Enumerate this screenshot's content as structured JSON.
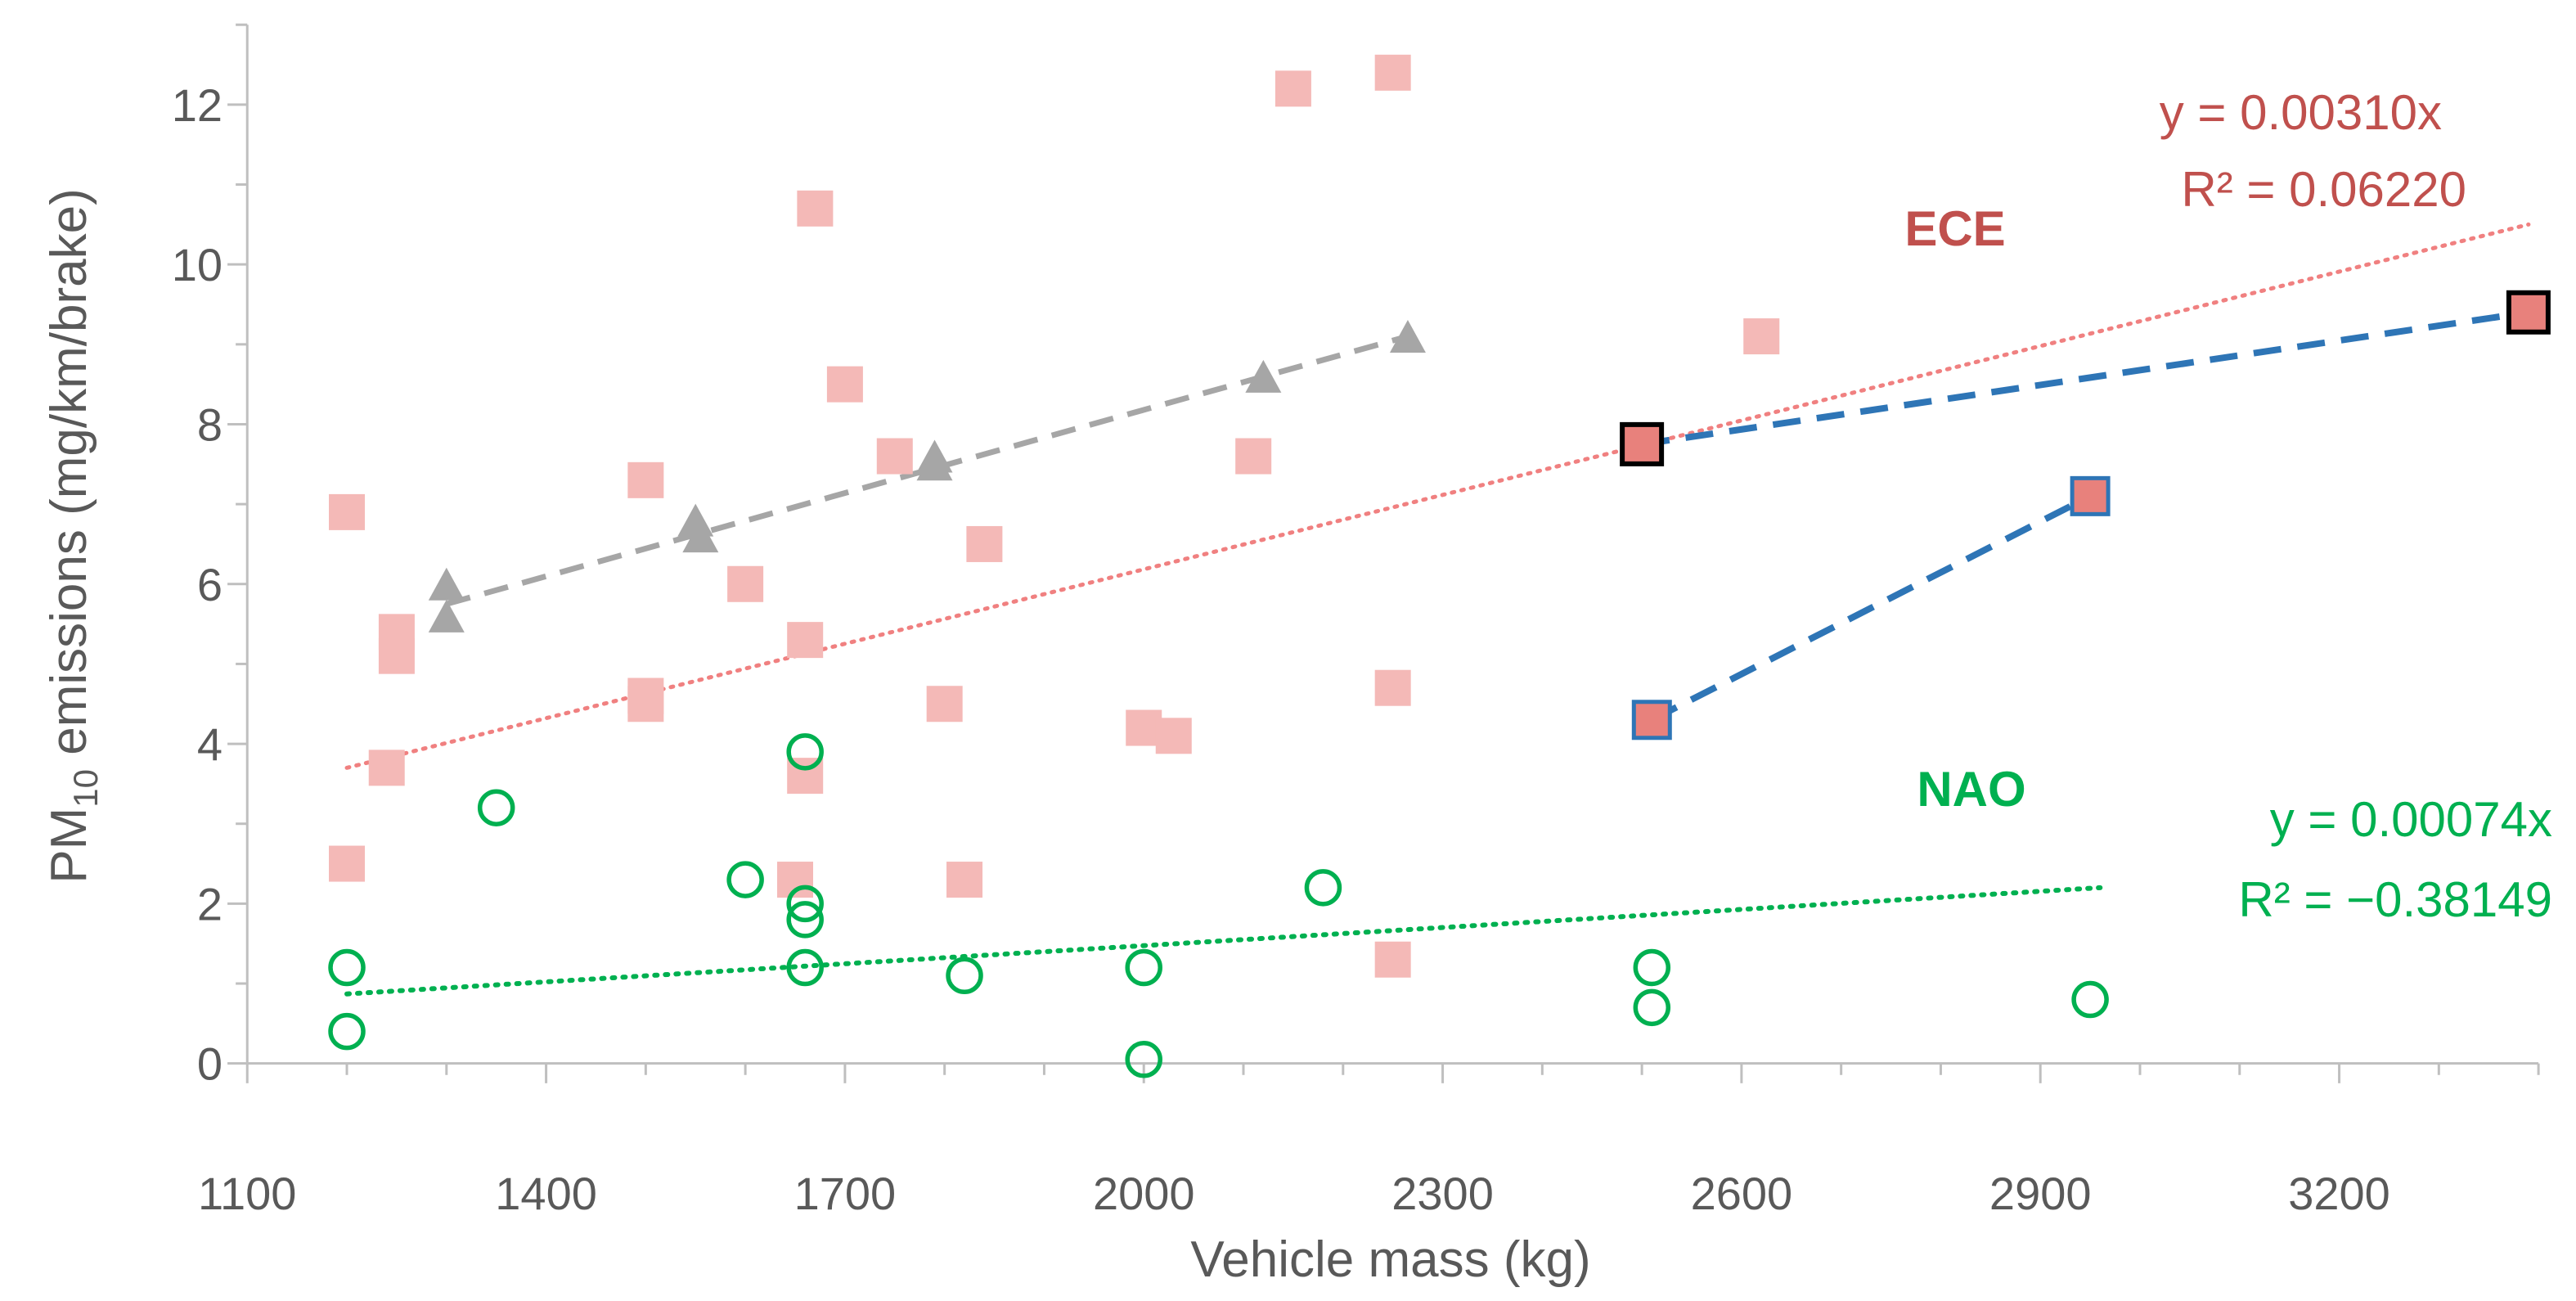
{
  "chart_data": {
    "type": "scatter",
    "title": "",
    "xlabel": "Vehicle mass (kg)",
    "ylabel_main": "PM",
    "ylabel_sub": "10",
    "ylabel_rest": " emissions (mg/km/brake)",
    "xlim": [
      1100,
      3400
    ],
    "ylim": [
      0,
      13
    ],
    "x_ticks": [
      1100,
      1400,
      1700,
      2000,
      2300,
      2600,
      2900,
      3200
    ],
    "x_tick_labels": [
      "1100",
      "1400",
      "1700",
      "2000",
      "2300",
      "2600",
      "2900",
      "3200"
    ],
    "x_minor_step": 100,
    "y_ticks": [
      0,
      2,
      4,
      6,
      8,
      10,
      12
    ],
    "y_tick_labels": [
      "0",
      "2",
      "4",
      "6",
      "8",
      "10",
      "12"
    ],
    "y_minor_step": 1,
    "colors": {
      "ece": "#f4b9b7",
      "ece_text": "#c0504d",
      "ece_trend": "#f08080",
      "nao": "#00b050",
      "gray": "#a6a6a6",
      "blue": "#2e75b6",
      "highlight_fill": "#e8817c",
      "axis": "#bfbfbf"
    },
    "series": [
      {
        "name": "ECE",
        "marker": "square",
        "points": [
          [
            1200,
            6.9
          ],
          [
            1200,
            2.5
          ],
          [
            1240,
            3.7
          ],
          [
            1250,
            5.4
          ],
          [
            1250,
            5.1
          ],
          [
            1500,
            7.3
          ],
          [
            1500,
            4.6
          ],
          [
            1500,
            4.5
          ],
          [
            1600,
            6.0
          ],
          [
            1650,
            2.3
          ],
          [
            1660,
            5.3
          ],
          [
            1660,
            3.6
          ],
          [
            1670,
            10.7
          ],
          [
            1700,
            8.5
          ],
          [
            1750,
            7.6
          ],
          [
            1800,
            4.5
          ],
          [
            1820,
            2.3
          ],
          [
            1840,
            6.5
          ],
          [
            2000,
            4.2
          ],
          [
            2030,
            4.1
          ],
          [
            2110,
            7.6
          ],
          [
            2150,
            12.2
          ],
          [
            2250,
            12.4
          ],
          [
            2250,
            4.7
          ],
          [
            2250,
            1.3
          ],
          [
            2620,
            9.1
          ]
        ]
      },
      {
        "name": "NAO",
        "marker": "circle",
        "points": [
          [
            1200,
            1.2
          ],
          [
            1200,
            0.4
          ],
          [
            1350,
            3.2
          ],
          [
            1600,
            2.3
          ],
          [
            1660,
            3.9
          ],
          [
            1660,
            2.0
          ],
          [
            1660,
            1.8
          ],
          [
            1660,
            1.2
          ],
          [
            1820,
            1.1
          ],
          [
            2000,
            1.2
          ],
          [
            2000,
            0.05
          ],
          [
            2180,
            2.2
          ],
          [
            2510,
            1.2
          ],
          [
            2510,
            0.7
          ],
          [
            2950,
            0.8
          ]
        ]
      },
      {
        "name": "gray",
        "marker": "triangle",
        "points": [
          [
            1300,
            5.6
          ],
          [
            1300,
            6.0
          ],
          [
            1550,
            6.8
          ],
          [
            1555,
            6.6
          ],
          [
            1790,
            7.6
          ],
          [
            1790,
            7.5
          ],
          [
            2120,
            8.6
          ],
          [
            2265,
            9.1
          ]
        ],
        "trend_from": [
          1300,
          5.75
        ],
        "trend_to": [
          2265,
          9.1
        ]
      },
      {
        "name": "blue",
        "marker": "square-outlined",
        "points": [
          [
            2510,
            4.3
          ],
          [
            2950,
            7.1
          ]
        ]
      },
      {
        "name": "black",
        "marker": "square-outlined",
        "points": [
          [
            2500,
            7.75
          ],
          [
            3390,
            9.4
          ]
        ]
      }
    ],
    "trendlines": {
      "ece": {
        "from": [
          1200,
          3.7
        ],
        "to": [
          3390,
          10.5
        ]
      },
      "nao": {
        "from": [
          1200,
          0.87
        ],
        "to": [
          2960,
          2.2
        ]
      }
    },
    "annotations": {
      "ece_label": "ECE",
      "nao_label": "NAO",
      "ece_eq": "y = 0.00310x",
      "ece_r2": "R² = 0.06220",
      "nao_eq": "y = 0.00074x",
      "nao_r2": "R² = −0.38149"
    }
  }
}
